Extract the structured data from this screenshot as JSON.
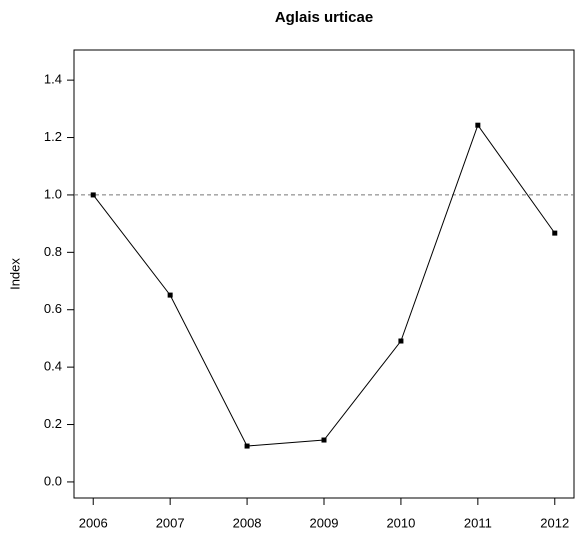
{
  "chart_data": {
    "type": "line",
    "title": "Aglais urticae",
    "y_label": "Index",
    "x": [
      2006,
      2007,
      2008,
      2009,
      2010,
      2011,
      2012
    ],
    "series": [
      {
        "name": "Aglais urticae",
        "color": "#000000",
        "values": [
          1.0,
          0.651,
          0.125,
          0.146,
          0.491,
          1.243,
          0.867
        ]
      }
    ],
    "reference_line": 1.0,
    "xlim": [
      2005.75,
      2012.25
    ],
    "xticks": [
      2006,
      2007,
      2008,
      2009,
      2010,
      2011,
      2012
    ],
    "ylim": [
      -0.056,
      1.505
    ],
    "yticks": [
      {
        "value": 0,
        "label": "0.0"
      },
      0.2,
      0.4,
      0.6,
      0.8,
      {
        "value": 1,
        "label": "1.0"
      },
      1.2,
      1.4
    ],
    "grid": false
  }
}
